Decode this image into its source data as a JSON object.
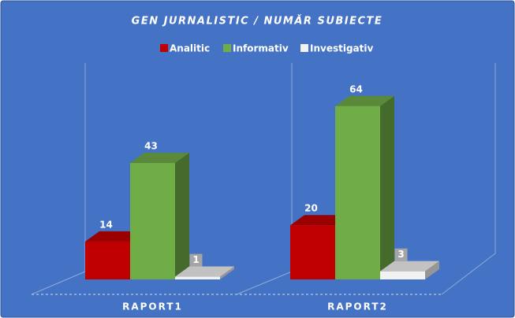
{
  "chart_data": {
    "type": "bar3d",
    "title": "GEN JURNALISTIC / NUMĂR SUBIECTE",
    "categories": [
      "RAPORT1",
      "RAPORT2"
    ],
    "series": [
      {
        "name": "Analitic",
        "color": "#c00000",
        "values": [
          14,
          20
        ]
      },
      {
        "name": "Informativ",
        "color": "#70ad47",
        "values": [
          43,
          64
        ]
      },
      {
        "name": "Investigativ",
        "color": "#f2f2f2",
        "values": [
          1,
          3
        ]
      }
    ],
    "legend": "top"
  }
}
